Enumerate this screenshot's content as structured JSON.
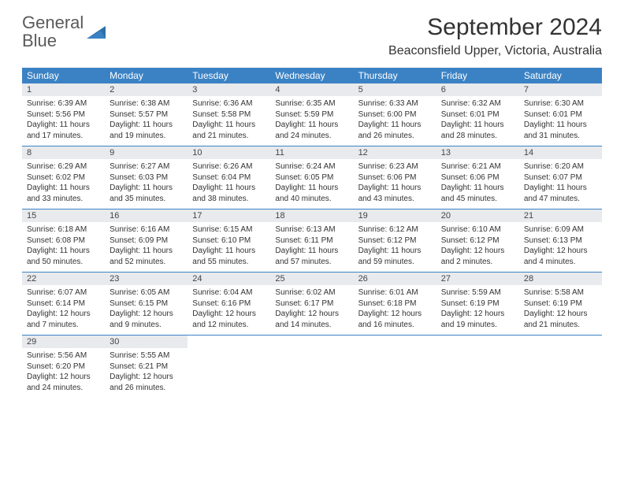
{
  "logo": {
    "word1": "General",
    "word2": "Blue"
  },
  "title": "September 2024",
  "location": "Beaconsfield Upper, Victoria, Australia",
  "dayNames": [
    "Sunday",
    "Monday",
    "Tuesday",
    "Wednesday",
    "Thursday",
    "Friday",
    "Saturday"
  ],
  "colors": {
    "header_bg": "#3b82c4",
    "daynum_bg": "#e8eaed",
    "text": "#333333",
    "logo_gray": "#5a5a5a",
    "logo_blue": "#3b82c4"
  },
  "weeks": [
    [
      {
        "n": "1",
        "sr": "Sunrise: 6:39 AM",
        "ss": "Sunset: 5:56 PM",
        "dl": "Daylight: 11 hours and 17 minutes."
      },
      {
        "n": "2",
        "sr": "Sunrise: 6:38 AM",
        "ss": "Sunset: 5:57 PM",
        "dl": "Daylight: 11 hours and 19 minutes."
      },
      {
        "n": "3",
        "sr": "Sunrise: 6:36 AM",
        "ss": "Sunset: 5:58 PM",
        "dl": "Daylight: 11 hours and 21 minutes."
      },
      {
        "n": "4",
        "sr": "Sunrise: 6:35 AM",
        "ss": "Sunset: 5:59 PM",
        "dl": "Daylight: 11 hours and 24 minutes."
      },
      {
        "n": "5",
        "sr": "Sunrise: 6:33 AM",
        "ss": "Sunset: 6:00 PM",
        "dl": "Daylight: 11 hours and 26 minutes."
      },
      {
        "n": "6",
        "sr": "Sunrise: 6:32 AM",
        "ss": "Sunset: 6:01 PM",
        "dl": "Daylight: 11 hours and 28 minutes."
      },
      {
        "n": "7",
        "sr": "Sunrise: 6:30 AM",
        "ss": "Sunset: 6:01 PM",
        "dl": "Daylight: 11 hours and 31 minutes."
      }
    ],
    [
      {
        "n": "8",
        "sr": "Sunrise: 6:29 AM",
        "ss": "Sunset: 6:02 PM",
        "dl": "Daylight: 11 hours and 33 minutes."
      },
      {
        "n": "9",
        "sr": "Sunrise: 6:27 AM",
        "ss": "Sunset: 6:03 PM",
        "dl": "Daylight: 11 hours and 35 minutes."
      },
      {
        "n": "10",
        "sr": "Sunrise: 6:26 AM",
        "ss": "Sunset: 6:04 PM",
        "dl": "Daylight: 11 hours and 38 minutes."
      },
      {
        "n": "11",
        "sr": "Sunrise: 6:24 AM",
        "ss": "Sunset: 6:05 PM",
        "dl": "Daylight: 11 hours and 40 minutes."
      },
      {
        "n": "12",
        "sr": "Sunrise: 6:23 AM",
        "ss": "Sunset: 6:06 PM",
        "dl": "Daylight: 11 hours and 43 minutes."
      },
      {
        "n": "13",
        "sr": "Sunrise: 6:21 AM",
        "ss": "Sunset: 6:06 PM",
        "dl": "Daylight: 11 hours and 45 minutes."
      },
      {
        "n": "14",
        "sr": "Sunrise: 6:20 AM",
        "ss": "Sunset: 6:07 PM",
        "dl": "Daylight: 11 hours and 47 minutes."
      }
    ],
    [
      {
        "n": "15",
        "sr": "Sunrise: 6:18 AM",
        "ss": "Sunset: 6:08 PM",
        "dl": "Daylight: 11 hours and 50 minutes."
      },
      {
        "n": "16",
        "sr": "Sunrise: 6:16 AM",
        "ss": "Sunset: 6:09 PM",
        "dl": "Daylight: 11 hours and 52 minutes."
      },
      {
        "n": "17",
        "sr": "Sunrise: 6:15 AM",
        "ss": "Sunset: 6:10 PM",
        "dl": "Daylight: 11 hours and 55 minutes."
      },
      {
        "n": "18",
        "sr": "Sunrise: 6:13 AM",
        "ss": "Sunset: 6:11 PM",
        "dl": "Daylight: 11 hours and 57 minutes."
      },
      {
        "n": "19",
        "sr": "Sunrise: 6:12 AM",
        "ss": "Sunset: 6:12 PM",
        "dl": "Daylight: 11 hours and 59 minutes."
      },
      {
        "n": "20",
        "sr": "Sunrise: 6:10 AM",
        "ss": "Sunset: 6:12 PM",
        "dl": "Daylight: 12 hours and 2 minutes."
      },
      {
        "n": "21",
        "sr": "Sunrise: 6:09 AM",
        "ss": "Sunset: 6:13 PM",
        "dl": "Daylight: 12 hours and 4 minutes."
      }
    ],
    [
      {
        "n": "22",
        "sr": "Sunrise: 6:07 AM",
        "ss": "Sunset: 6:14 PM",
        "dl": "Daylight: 12 hours and 7 minutes."
      },
      {
        "n": "23",
        "sr": "Sunrise: 6:05 AM",
        "ss": "Sunset: 6:15 PM",
        "dl": "Daylight: 12 hours and 9 minutes."
      },
      {
        "n": "24",
        "sr": "Sunrise: 6:04 AM",
        "ss": "Sunset: 6:16 PM",
        "dl": "Daylight: 12 hours and 12 minutes."
      },
      {
        "n": "25",
        "sr": "Sunrise: 6:02 AM",
        "ss": "Sunset: 6:17 PM",
        "dl": "Daylight: 12 hours and 14 minutes."
      },
      {
        "n": "26",
        "sr": "Sunrise: 6:01 AM",
        "ss": "Sunset: 6:18 PM",
        "dl": "Daylight: 12 hours and 16 minutes."
      },
      {
        "n": "27",
        "sr": "Sunrise: 5:59 AM",
        "ss": "Sunset: 6:19 PM",
        "dl": "Daylight: 12 hours and 19 minutes."
      },
      {
        "n": "28",
        "sr": "Sunrise: 5:58 AM",
        "ss": "Sunset: 6:19 PM",
        "dl": "Daylight: 12 hours and 21 minutes."
      }
    ],
    [
      {
        "n": "29",
        "sr": "Sunrise: 5:56 AM",
        "ss": "Sunset: 6:20 PM",
        "dl": "Daylight: 12 hours and 24 minutes."
      },
      {
        "n": "30",
        "sr": "Sunrise: 5:55 AM",
        "ss": "Sunset: 6:21 PM",
        "dl": "Daylight: 12 hours and 26 minutes."
      },
      null,
      null,
      null,
      null,
      null
    ]
  ]
}
